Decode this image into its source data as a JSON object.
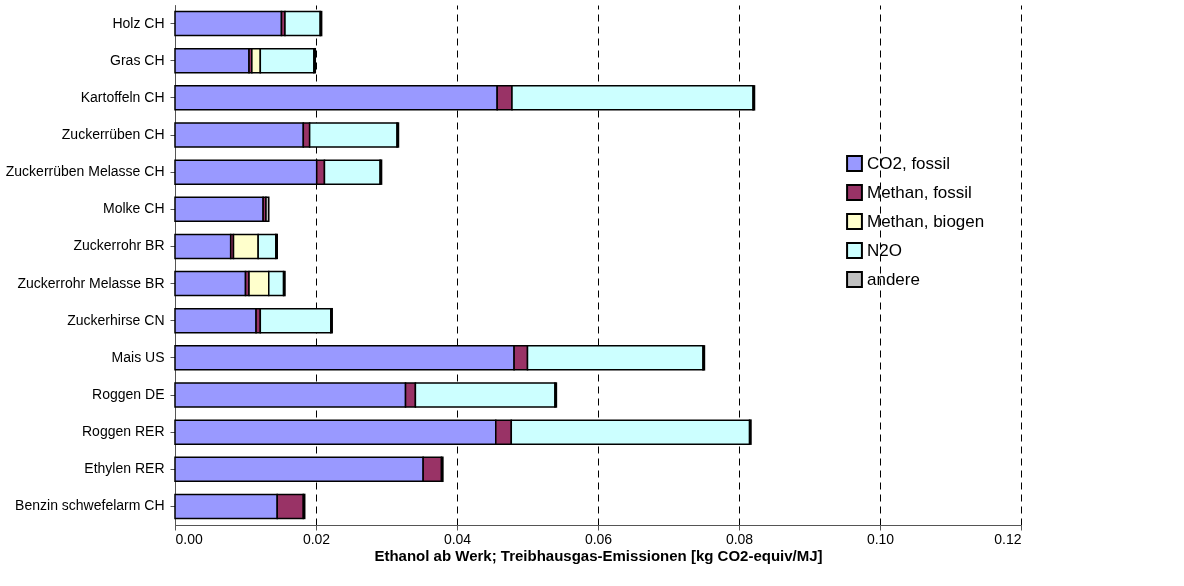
{
  "chart_data": {
    "type": "bar",
    "orientation": "horizontal",
    "stacked": true,
    "xlabel": "Ethanol ab Werk; Treibhausgas-Emissionen [kg CO2-equiv/MJ]",
    "categories": [
      "Holz CH",
      "Gras CH",
      "Kartoffeln CH",
      "Zuckerrüben CH",
      "Zuckerrüben Melasse CH",
      "Molke CH",
      "Zuckerrohr BR",
      "Zuckerrohr Melasse BR",
      "Zuckerhirse CN",
      "Mais US",
      "Roggen DE",
      "Roggen RER",
      "Ethylen RER",
      "Benzin schwefelarm CH"
    ],
    "series": [
      {
        "name": "CO2, fossil",
        "color": "#9999ff",
        "values": [
          0.0151,
          0.0105,
          0.0457,
          0.0182,
          0.0201,
          0.0125,
          0.0079,
          0.01,
          0.0115,
          0.0481,
          0.0327,
          0.0455,
          0.0352,
          0.0145
        ]
      },
      {
        "name": "Methan, fossil",
        "color": "#993366",
        "values": [
          0.0005,
          0.0004,
          0.0021,
          0.0009,
          0.0011,
          0.0004,
          0.0004,
          0.0005,
          0.0006,
          0.0019,
          0.0014,
          0.0022,
          0.0026,
          0.0037
        ]
      },
      {
        "name": "Methan, biogen",
        "color": "#ffffcc",
        "values": [
          0,
          0.0012,
          0,
          0,
          0,
          0,
          0.0035,
          0.0028,
          0,
          0,
          0,
          0,
          0,
          0
        ]
      },
      {
        "name": "N2O",
        "color": "#ccffff",
        "values": [
          0.005,
          0.0076,
          0.0342,
          0.0124,
          0.0079,
          0,
          0.0025,
          0.0021,
          0.01,
          0.0249,
          0.0198,
          0.0338,
          0,
          0
        ]
      },
      {
        "name": "andere",
        "color": "#c0c0c0",
        "values": [
          0.0002,
          0.0002,
          0.0002,
          0.0002,
          0.0002,
          0.0004,
          0.0002,
          0.0002,
          0.0002,
          0.0002,
          0.0002,
          0.0002,
          0.0002,
          0.0002
        ]
      }
    ],
    "xlim": [
      0,
      0.12
    ],
    "xticks": [
      {
        "value": 0,
        "label": "0.00"
      },
      {
        "value": 0.02,
        "label": "0.02"
      },
      {
        "value": 0.04,
        "label": "0.04"
      },
      {
        "value": 0.06,
        "label": "0.06"
      },
      {
        "value": 0.08,
        "label": "0.08"
      },
      {
        "value": 0.1,
        "label": "0.10"
      },
      {
        "value": 0.12,
        "label": "0.12"
      }
    ],
    "grid": "x",
    "legend": "right"
  }
}
